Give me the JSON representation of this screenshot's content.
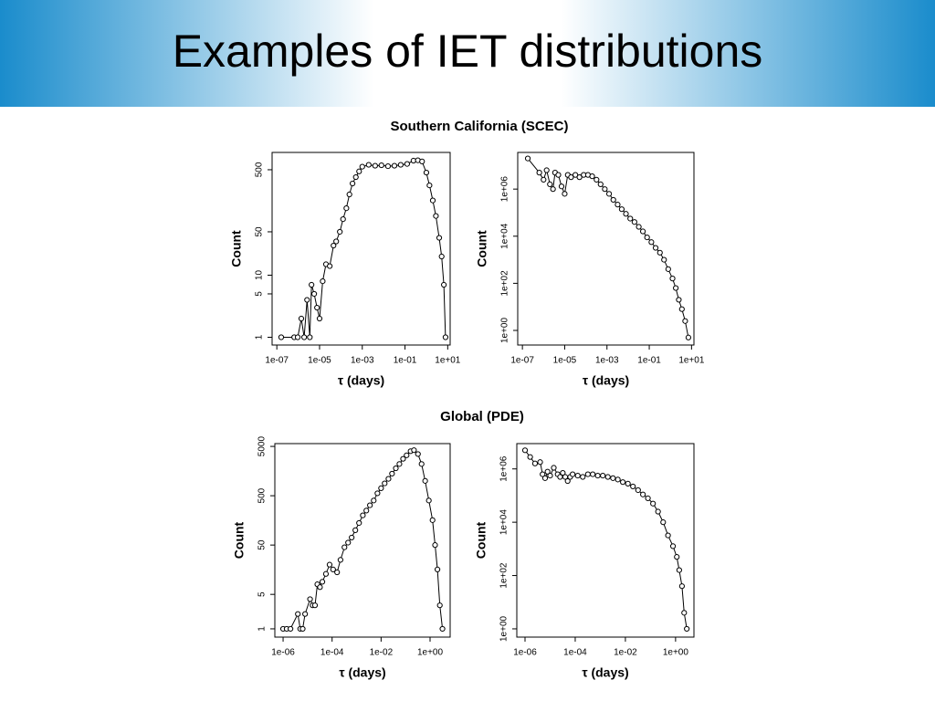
{
  "title": "Examples of IET distributions",
  "sections": [
    {
      "title": "Southern California (SCEC)"
    },
    {
      "title": "Global (PDE)"
    }
  ],
  "chart_data": [
    {
      "type": "line",
      "xlabel": "τ (days)",
      "ylabel": "Count",
      "log_x": true,
      "log_y": true,
      "color": "#000000",
      "marker": "circle",
      "x": [
        1.6e-07,
        6.5e-07,
        9.5e-07,
        1.4e-06,
        1.9e-06,
        2.6e-06,
        3.5e-06,
        4.2e-06,
        5.6e-06,
        7.6e-06,
        1e-05,
        1.4e-05,
        2e-05,
        3e-05,
        4.5e-05,
        6e-05,
        8.9e-05,
        0.000126,
        0.00018,
        0.00025,
        0.00035,
        0.0005,
        0.00071,
        0.001,
        0.002,
        0.004,
        0.0079,
        0.016,
        0.032,
        0.063,
        0.126,
        0.25,
        0.4,
        0.63,
        1,
        1.4,
        2,
        2.8,
        4,
        5.2,
        6.6,
        7.9
      ],
      "values": [
        1,
        1,
        1,
        2,
        1,
        4,
        1,
        7,
        5,
        3,
        2,
        8,
        15,
        14,
        30,
        35,
        50,
        80,
        120,
        200,
        300,
        380,
        470,
        560,
        600,
        580,
        590,
        570,
        580,
        600,
        620,
        700,
        710,
        680,
        450,
        280,
        160,
        90,
        40,
        20,
        7,
        1
      ],
      "xlim": [
        6e-08,
        13
      ],
      "ylim": [
        0.75,
        950
      ],
      "xticks": [
        {
          "value": 1e-07,
          "label": "1e-07"
        },
        {
          "value": 1e-05,
          "label": "1e-05"
        },
        {
          "value": 0.001,
          "label": "1e-03"
        },
        {
          "value": 0.1,
          "label": "1e-01"
        },
        {
          "value": 10,
          "label": "1e+01"
        }
      ],
      "yticks": [
        1,
        5,
        10,
        50,
        500
      ]
    },
    {
      "type": "line",
      "xlabel": "τ (days)",
      "ylabel": "Count",
      "log_x": true,
      "log_y": true,
      "color": "#000000",
      "marker": "circle",
      "x": [
        1.8e-07,
        6.3e-07,
        1e-06,
        1.4e-06,
        2e-06,
        2.8e-06,
        3.5e-06,
        5e-06,
        7.1e-06,
        1e-05,
        1.4e-05,
        2e-05,
        3.2e-05,
        5e-05,
        7.9e-05,
        0.000126,
        0.0002,
        0.00032,
        0.0005,
        0.00079,
        0.00126,
        0.002,
        0.0032,
        0.005,
        0.0079,
        0.0126,
        0.02,
        0.032,
        0.05,
        0.079,
        0.126,
        0.2,
        0.32,
        0.5,
        0.79,
        1.26,
        1.8,
        2.5,
        3.5,
        5,
        7.1
      ],
      "values": [
        20000000.0,
        5000000.0,
        2500000.0,
        6300000.0,
        1600000.0,
        1000000.0,
        5000000.0,
        4000000.0,
        1300000.0,
        630000.0,
        4000000.0,
        3200000.0,
        4000000.0,
        3200000.0,
        4000000.0,
        4000000.0,
        3500000.0,
        2500000.0,
        1600000.0,
        1000000.0,
        630000.0,
        350000.0,
        220000.0,
        140000.0,
        89000.0,
        56000.0,
        40000.0,
        25000.0,
        16000.0,
        8900.0,
        5600.0,
        3200.0,
        2000.0,
        1000,
        400,
        160,
        63,
        20,
        8,
        2.5,
        0.5
      ],
      "xlim": [
        6e-08,
        13
      ],
      "ylim": [
        0.24,
        36000000.0
      ],
      "xticks": [
        {
          "value": 1e-07,
          "label": "1e-07"
        },
        {
          "value": 1e-05,
          "label": "1e-05"
        },
        {
          "value": 0.001,
          "label": "1e-03"
        },
        {
          "value": 0.1,
          "label": "1e-01"
        },
        {
          "value": 10,
          "label": "1e+01"
        }
      ],
      "yticks": [
        {
          "value": 1,
          "label": "1e+00"
        },
        {
          "value": 100,
          "label": "1e+02"
        },
        {
          "value": 10000,
          "label": "1e+04"
        },
        {
          "value": 1000000,
          "label": "1e+06"
        }
      ]
    },
    {
      "type": "line",
      "xlabel": "τ (days)",
      "ylabel": "Count",
      "log_x": true,
      "log_y": true,
      "color": "#000000",
      "marker": "circle",
      "x": [
        1e-06,
        1.4e-06,
        2e-06,
        4e-06,
        5e-06,
        6.3e-06,
        7.9e-06,
        1.26e-05,
        1.6e-05,
        2e-05,
        2.5e-05,
        3.2e-05,
        4e-05,
        5.6e-05,
        7.9e-05,
        0.00011,
        0.00016,
        0.00022,
        0.00032,
        0.00045,
        0.00063,
        0.00089,
        0.00126,
        0.0018,
        0.0025,
        0.0035,
        0.005,
        0.0071,
        0.01,
        0.014,
        0.02,
        0.028,
        0.04,
        0.056,
        0.079,
        0.11,
        0.16,
        0.22,
        0.32,
        0.45,
        0.63,
        0.89,
        1.26,
        1.6,
        2,
        2.5,
        3.2
      ],
      "values": [
        1,
        1,
        1,
        2,
        1,
        1,
        2,
        4,
        3,
        3,
        8,
        7,
        9,
        13,
        20,
        16,
        14,
        25,
        45,
        56,
        71,
        100,
        140,
        200,
        250,
        320,
        400,
        560,
        710,
        890,
        1100,
        1400,
        1800,
        2200,
        2800,
        3300,
        4000,
        4200,
        3500,
        2200,
        1000,
        400,
        160,
        50,
        16,
        3,
        1
      ],
      "xlim": [
        4.6e-07,
        6.6
      ],
      "ylim": [
        0.68,
        5700
      ],
      "xticks": [
        {
          "value": 1e-06,
          "label": "1e-06"
        },
        {
          "value": 0.0001,
          "label": "1e-04"
        },
        {
          "value": 0.01,
          "label": "1e-02"
        },
        {
          "value": 1,
          "label": "1e+00"
        }
      ],
      "yticks": [
        1,
        5,
        50,
        500,
        5000
      ]
    },
    {
      "type": "line",
      "xlabel": "τ (days)",
      "ylabel": "Count",
      "log_x": true,
      "log_y": true,
      "color": "#000000",
      "marker": "circle",
      "x": [
        1e-06,
        1.6e-06,
        2.5e-06,
        4e-06,
        5e-06,
        6.3e-06,
        7.9e-06,
        1e-05,
        1.4e-05,
        2e-05,
        2.5e-05,
        3.2e-05,
        4e-05,
        5e-05,
        6.3e-05,
        7.9e-05,
        0.000126,
        0.0002,
        0.00032,
        0.0005,
        0.00079,
        0.00126,
        0.002,
        0.0032,
        0.005,
        0.0079,
        0.0126,
        0.02,
        0.032,
        0.05,
        0.079,
        0.126,
        0.2,
        0.32,
        0.5,
        0.79,
        1.12,
        1.4,
        1.8,
        2.2,
        2.8
      ],
      "values": [
        5000000.0,
        2800000.0,
        1600000.0,
        1800000.0,
        630000.0,
        450000.0,
        790000.0,
        560000.0,
        1100000.0,
        630000.0,
        500000.0,
        710000.0,
        500000.0,
        350000.0,
        500000.0,
        630000.0,
        560000.0,
        500000.0,
        630000.0,
        630000.0,
        560000.0,
        560000.0,
        500000.0,
        450000.0,
        400000.0,
        320000.0,
        280000.0,
        220000.0,
        160000.0,
        110000.0,
        79000.0,
        50000.0,
        25000.0,
        10000.0,
        3200,
        1260,
        500,
        160,
        40,
        4,
        1
      ],
      "xlim": [
        4.7e-07,
        5.4
      ],
      "ylim": [
        0.49,
        8900000.0
      ],
      "xticks": [
        {
          "value": 1e-06,
          "label": "1e-06"
        },
        {
          "value": 0.0001,
          "label": "1e-04"
        },
        {
          "value": 0.01,
          "label": "1e-02"
        },
        {
          "value": 1,
          "label": "1e+00"
        }
      ],
      "yticks": [
        {
          "value": 1,
          "label": "1e+00"
        },
        {
          "value": 100,
          "label": "1e+02"
        },
        {
          "value": 10000,
          "label": "1e+04"
        },
        {
          "value": 1000000,
          "label": "1e+06"
        }
      ]
    }
  ]
}
